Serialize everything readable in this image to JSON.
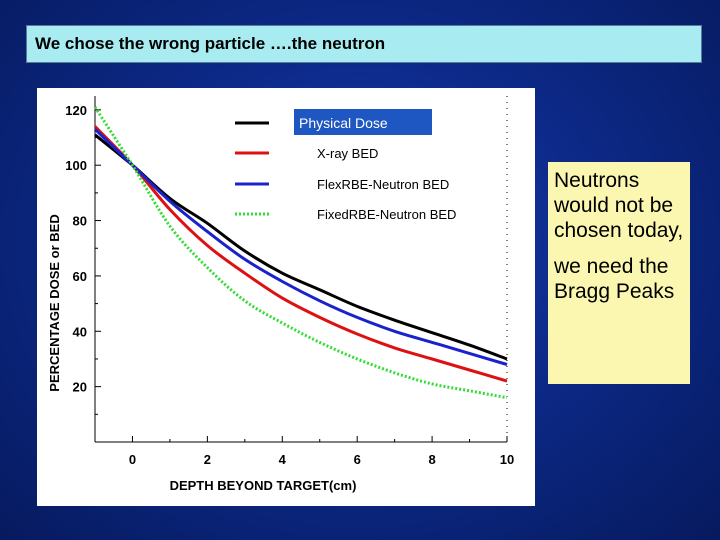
{
  "slide": {
    "title": "We chose the wrong particle ….the neutron"
  },
  "note": {
    "paragraph1": "Neutrons would not be chosen today,",
    "paragraph2": "we need the Bragg Peaks"
  },
  "chart_data": {
    "type": "line",
    "xlabel": "DEPTH BEYOND TARGET(cm)",
    "ylabel": "PERCENTAGE DOSE or BED",
    "xlim": [
      -1,
      10
    ],
    "ylim": [
      0,
      125
    ],
    "x_ticks": [
      0,
      2,
      4,
      6,
      8,
      10
    ],
    "y_ticks": [
      20,
      40,
      60,
      80,
      100,
      120
    ],
    "grid": false,
    "legend_position": "top-right",
    "series": [
      {
        "name": "Physical Dose",
        "color": "#000000",
        "dash": "solid",
        "x": [
          -1,
          0,
          1,
          2,
          3,
          4,
          5,
          6,
          7,
          8,
          9,
          10
        ],
        "y": [
          111,
          100,
          88,
          79,
          69,
          61,
          55,
          49,
          44,
          39.5,
          35,
          30
        ]
      },
      {
        "name": "X-ray BED",
        "color": "#dd1111",
        "dash": "solid",
        "x": [
          -1,
          0,
          1,
          2,
          3,
          4,
          5,
          6,
          7,
          8,
          9,
          10
        ],
        "y": [
          114,
          100,
          84,
          71,
          61,
          52,
          45,
          39,
          34,
          30,
          26,
          22
        ]
      },
      {
        "name": "FlexRBE-Neutron BED",
        "color": "#1a22cc",
        "dash": "solid",
        "x": [
          -1,
          0,
          1,
          2,
          3,
          4,
          5,
          6,
          7,
          8,
          9,
          10
        ],
        "y": [
          113,
          100,
          87,
          76,
          66,
          58,
          51,
          45,
          40,
          36,
          32,
          28
        ]
      },
      {
        "name": "FixedRBE-Neutron BED",
        "color": "#33dd33",
        "dash": "dotted",
        "x": [
          -1,
          0,
          1,
          2,
          3,
          4,
          5,
          6,
          7,
          8,
          9,
          10
        ],
        "y": [
          121,
          100,
          78,
          63,
          51,
          43,
          36,
          30,
          25,
          21,
          18.5,
          16
        ]
      }
    ]
  }
}
